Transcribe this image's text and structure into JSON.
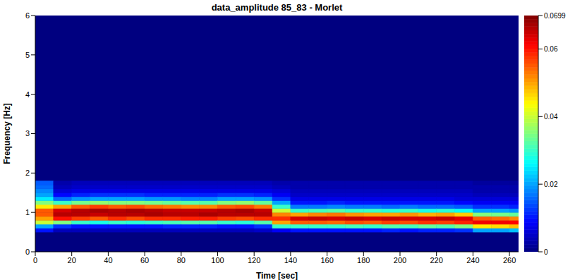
{
  "chart_data": {
    "type": "heatmap",
    "title": "data_amplitude 85_83 - Morlet",
    "x_label": "Time [sec]",
    "y_label": "Frequency [Hz]",
    "xlim": [
      0,
      265
    ],
    "xticks": [
      0,
      20,
      40,
      60,
      80,
      100,
      120,
      140,
      160,
      180,
      200,
      220,
      240,
      260
    ],
    "ylim": [
      0,
      6
    ],
    "yticks": [
      0,
      1,
      2,
      3,
      4,
      5,
      6
    ],
    "x_bins": [
      0,
      10,
      20,
      30,
      40,
      50,
      60,
      70,
      80,
      90,
      100,
      110,
      120,
      130,
      140,
      150,
      160,
      170,
      180,
      190,
      200,
      210,
      220,
      230,
      240,
      250,
      260,
      265
    ],
    "y_bins": [
      0.5,
      0.6,
      0.7,
      0.8,
      0.9,
      1.0,
      1.1,
      1.2,
      1.3,
      1.4,
      1.5,
      1.6,
      1.7,
      1.8
    ],
    "cells": [
      [
        0.01,
        0.02,
        0.04,
        0.05,
        0.055,
        0.055,
        0.045,
        0.035,
        0.025,
        0.02,
        0.018,
        0.016,
        0.015
      ],
      [
        0.004,
        0.012,
        0.035,
        0.06,
        0.066,
        0.064,
        0.05,
        0.03,
        0.016,
        0.009,
        0.006,
        0.004,
        0.003
      ],
      [
        0.004,
        0.01,
        0.03,
        0.057,
        0.066,
        0.066,
        0.055,
        0.034,
        0.019,
        0.011,
        0.007,
        0.005,
        0.004
      ],
      [
        0.004,
        0.01,
        0.028,
        0.055,
        0.065,
        0.067,
        0.057,
        0.036,
        0.02,
        0.012,
        0.007,
        0.005,
        0.004
      ],
      [
        0.004,
        0.01,
        0.03,
        0.058,
        0.066,
        0.066,
        0.055,
        0.035,
        0.02,
        0.012,
        0.007,
        0.005,
        0.004
      ],
      [
        0.004,
        0.01,
        0.029,
        0.056,
        0.066,
        0.067,
        0.056,
        0.035,
        0.02,
        0.012,
        0.007,
        0.005,
        0.004
      ],
      [
        0.004,
        0.01,
        0.03,
        0.058,
        0.067,
        0.066,
        0.054,
        0.034,
        0.019,
        0.011,
        0.007,
        0.005,
        0.004
      ],
      [
        0.004,
        0.011,
        0.031,
        0.058,
        0.066,
        0.065,
        0.053,
        0.033,
        0.019,
        0.011,
        0.007,
        0.005,
        0.004
      ],
      [
        0.004,
        0.011,
        0.032,
        0.059,
        0.066,
        0.065,
        0.052,
        0.032,
        0.018,
        0.011,
        0.007,
        0.005,
        0.004
      ],
      [
        0.004,
        0.011,
        0.032,
        0.059,
        0.067,
        0.065,
        0.052,
        0.032,
        0.018,
        0.011,
        0.007,
        0.005,
        0.004
      ],
      [
        0.004,
        0.01,
        0.03,
        0.057,
        0.066,
        0.066,
        0.055,
        0.035,
        0.02,
        0.012,
        0.007,
        0.005,
        0.004
      ],
      [
        0.004,
        0.01,
        0.029,
        0.056,
        0.066,
        0.067,
        0.056,
        0.036,
        0.02,
        0.012,
        0.007,
        0.005,
        0.004
      ],
      [
        0.005,
        0.012,
        0.032,
        0.058,
        0.066,
        0.065,
        0.053,
        0.033,
        0.019,
        0.011,
        0.007,
        0.005,
        0.004
      ],
      [
        0.008,
        0.03,
        0.05,
        0.058,
        0.052,
        0.04,
        0.03,
        0.02,
        0.012,
        0.008,
        0.006,
        0.004,
        0.003
      ],
      [
        0.01,
        0.03,
        0.055,
        0.064,
        0.05,
        0.03,
        0.017,
        0.01,
        0.007,
        0.005,
        0.004,
        0.003,
        0.003
      ],
      [
        0.01,
        0.03,
        0.055,
        0.065,
        0.052,
        0.031,
        0.017,
        0.01,
        0.007,
        0.005,
        0.004,
        0.003,
        0.003
      ],
      [
        0.01,
        0.03,
        0.054,
        0.064,
        0.053,
        0.032,
        0.018,
        0.011,
        0.007,
        0.005,
        0.004,
        0.003,
        0.003
      ],
      [
        0.01,
        0.031,
        0.056,
        0.065,
        0.051,
        0.03,
        0.017,
        0.01,
        0.007,
        0.005,
        0.004,
        0.003,
        0.003
      ],
      [
        0.01,
        0.03,
        0.055,
        0.064,
        0.05,
        0.03,
        0.017,
        0.01,
        0.007,
        0.005,
        0.004,
        0.003,
        0.003
      ],
      [
        0.011,
        0.032,
        0.057,
        0.065,
        0.05,
        0.029,
        0.016,
        0.01,
        0.007,
        0.005,
        0.004,
        0.003,
        0.003
      ],
      [
        0.01,
        0.031,
        0.056,
        0.064,
        0.051,
        0.03,
        0.017,
        0.01,
        0.007,
        0.005,
        0.004,
        0.003,
        0.003
      ],
      [
        0.011,
        0.033,
        0.058,
        0.064,
        0.049,
        0.028,
        0.016,
        0.01,
        0.007,
        0.005,
        0.004,
        0.003,
        0.003
      ],
      [
        0.011,
        0.032,
        0.057,
        0.065,
        0.05,
        0.029,
        0.016,
        0.01,
        0.007,
        0.005,
        0.004,
        0.003,
        0.003
      ],
      [
        0.012,
        0.035,
        0.059,
        0.063,
        0.047,
        0.027,
        0.015,
        0.009,
        0.006,
        0.005,
        0.004,
        0.003,
        0.003
      ],
      [
        0.02,
        0.045,
        0.062,
        0.055,
        0.035,
        0.02,
        0.012,
        0.008,
        0.006,
        0.004,
        0.003,
        0.003,
        0.002
      ],
      [
        0.02,
        0.046,
        0.062,
        0.054,
        0.034,
        0.02,
        0.012,
        0.008,
        0.006,
        0.004,
        0.003,
        0.003,
        0.002
      ],
      [
        0.022,
        0.048,
        0.061,
        0.052,
        0.033,
        0.019,
        0.011,
        0.008,
        0.006,
        0.004,
        0.003,
        0.003,
        0.002
      ]
    ],
    "colorbar": {
      "range": [
        0,
        0.0699
      ],
      "ticks": [
        0,
        0.02,
        0.04,
        0.06,
        0.0699
      ]
    }
  }
}
